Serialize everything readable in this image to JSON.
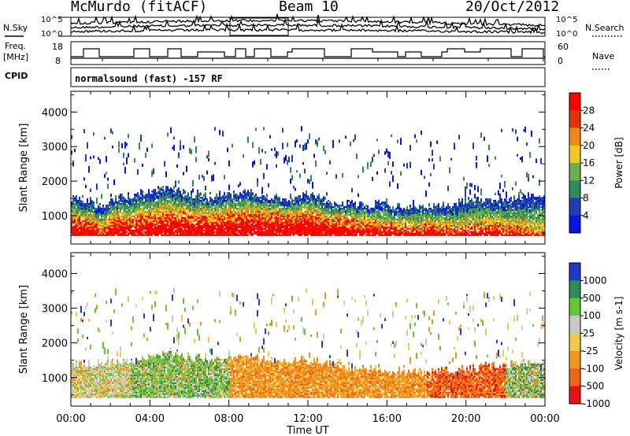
{
  "header": {
    "station": "McMurdo (fitACF)",
    "beam": "Beam 10",
    "date": "20/Oct/2012"
  },
  "noise_panel": {
    "left_label": "N.Sky",
    "right_label": "N.Search",
    "left_ticks": [
      "10^5",
      "10^0"
    ],
    "right_ticks": [
      "10^5",
      "10^0"
    ]
  },
  "freq_panel": {
    "left_label_top": "Freq.",
    "left_label_bottom": "[MHz]",
    "left_ticks": [
      "18",
      "8"
    ],
    "right_label": "Nave",
    "right_ticks": [
      "60",
      "0"
    ]
  },
  "cpid_panel": {
    "label": "CPID",
    "text": "normalsound (fast) -157 RF"
  },
  "chart_data": [
    {
      "type": "heatmap",
      "name": "power",
      "ylabel": "Slant Range [km]",
      "yticks": [
        1000,
        2000,
        3000,
        4000
      ],
      "ylim": [
        180,
        4600
      ],
      "xlim": [
        0,
        24
      ],
      "colorbar_label": "Power [dB]",
      "colorbar_ticks": [
        "4",
        "8",
        "12",
        "16",
        "20",
        "24",
        "28"
      ],
      "colors": [
        "#0a14e6",
        "#1e3fb4",
        "#2d8c5a",
        "#6ab04c",
        "#f0c820",
        "#f08a14",
        "#e6320a",
        "#ff0000"
      ],
      "profile_hours": [
        0,
        1,
        1.5,
        2,
        3,
        4,
        5,
        6,
        7,
        8,
        9,
        10,
        11,
        12,
        13,
        14,
        15,
        16,
        17,
        18,
        19,
        20,
        21,
        22,
        23,
        24
      ],
      "profile_core_top_km": [
        900,
        850,
        600,
        900,
        950,
        1000,
        1100,
        1000,
        1000,
        1050,
        1100,
        1050,
        1000,
        1050,
        900,
        850,
        800,
        750,
        700,
        700,
        650,
        700,
        750,
        650,
        600,
        500
      ],
      "profile_echo_top_km": [
        1500,
        1400,
        1200,
        1500,
        1550,
        1700,
        1800,
        1600,
        1550,
        1600,
        1650,
        1550,
        1500,
        1600,
        1400,
        1350,
        1300,
        1300,
        1200,
        1250,
        1300,
        1400,
        1450,
        1500,
        1550,
        1600
      ]
    },
    {
      "type": "heatmap",
      "name": "velocity",
      "xlabel": "Time UT",
      "ylabel": "Slant Range [km]",
      "xticks": [
        "00:00",
        "04:00",
        "08:00",
        "12:00",
        "16:00",
        "20:00",
        "00:00"
      ],
      "yticks": [
        1000,
        2000,
        3000,
        4000
      ],
      "ylim": [
        180,
        4600
      ],
      "xlim": [
        0,
        24
      ],
      "colorbar_label": "Velocity [m s-1]",
      "colorbar_ticks": [
        "1000",
        "500",
        "100",
        "25",
        "-25",
        "-100",
        "-500",
        "-1000"
      ],
      "colors": [
        "#1e3cc8",
        "#2d8c5a",
        "#64c832",
        "#c8c8c8",
        "#f0c850",
        "#f0961e",
        "#f06414",
        "#e61414"
      ],
      "profile_hours": [
        0,
        1,
        2,
        3,
        4,
        5,
        6,
        7,
        8,
        9,
        10,
        11,
        12,
        13,
        14,
        15,
        16,
        17,
        18,
        19,
        20,
        21,
        22,
        23,
        24
      ],
      "profile_echo_top_km": [
        1400,
        1350,
        1450,
        1500,
        1600,
        1700,
        1600,
        1500,
        1550,
        1600,
        1500,
        1450,
        1500,
        1400,
        1300,
        1250,
        1200,
        1150,
        1150,
        1200,
        1250,
        1300,
        1350,
        1400,
        1450
      ]
    }
  ]
}
